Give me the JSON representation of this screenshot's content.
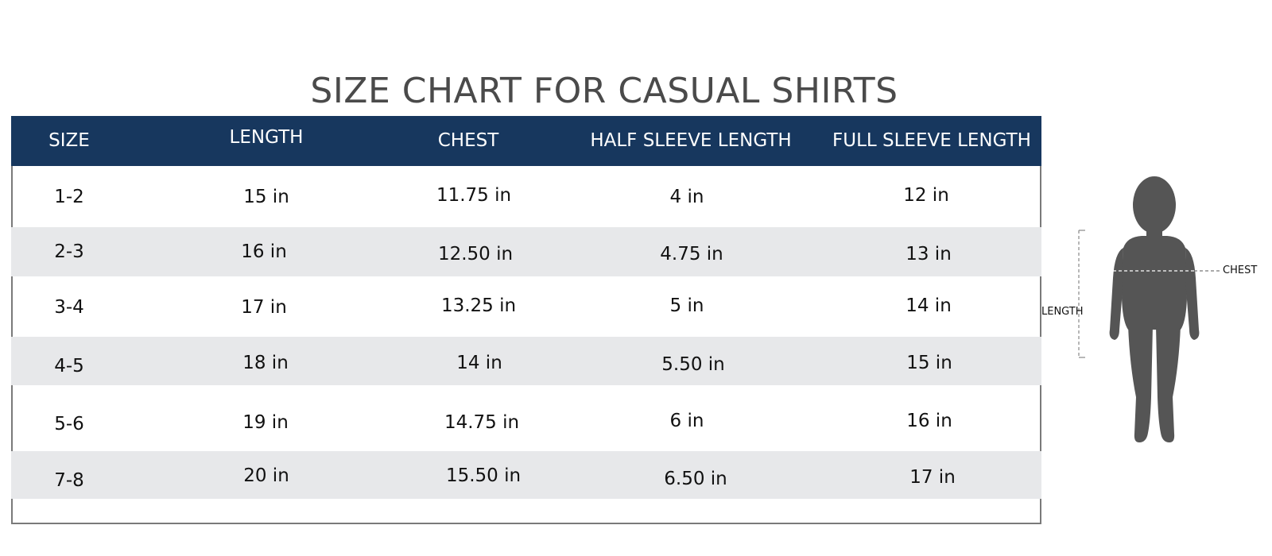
{
  "title": "SIZE CHART FOR CASUAL SHIRTS",
  "columns": [
    "SIZE",
    "LENGTH",
    "CHEST",
    "HALF SLEEVE LENGTH",
    "FULL SLEEVE LENGTH"
  ],
  "rows": [
    {
      "size": "1-2",
      "length": "15  in",
      "chest": "11.75 in",
      "half_sleeve": "4 in",
      "full_sleeve": "12 in"
    },
    {
      "size": "2-3",
      "length": "16 in",
      "chest": "12.50 in",
      "half_sleeve": "4.75 in",
      "full_sleeve": "13 in"
    },
    {
      "size": "3-4",
      "length": "17 in",
      "chest": "13.25 in",
      "half_sleeve": "5 in",
      "full_sleeve": "14 in"
    },
    {
      "size": "4-5",
      "length": "18 in",
      "chest": "14 in",
      "half_sleeve": "5.50 in",
      "full_sleeve": "15 in"
    },
    {
      "size": "5-6",
      "length": "19 in",
      "chest": "14.75 in",
      "half_sleeve": "6 in",
      "full_sleeve": "16 in"
    },
    {
      "size": "7-8",
      "length": "20 in",
      "chest": "15.50 in",
      "half_sleeve": "6.50 in",
      "full_sleeve": "17 in"
    }
  ],
  "figure": {
    "length_label": "LENGTH",
    "chest_label": "CHEST",
    "silhouette_icon": "child-silhouette-icon"
  },
  "colors": {
    "header_bg": "#17375e",
    "header_text": "#ffffff",
    "shaded_row": "#e7e8ea",
    "title_text": "#4a4a4a",
    "silhouette": "#555555"
  }
}
